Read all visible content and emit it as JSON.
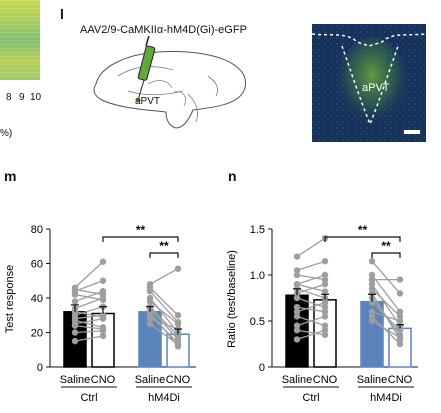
{
  "left_fragment": {
    "ticks": [
      "8",
      "9",
      "10"
    ],
    "unit": "%)"
  },
  "panel_l": {
    "letter": "l",
    "construct": "AAV2/9-CaMKIIα-hM4D(Gi)-eGFP",
    "brain_label": "aPVT",
    "micro_label": "aPVT",
    "colors": {
      "virus": "#5fa83a",
      "micro_bg": "#16325a",
      "micro_signal": "#6fae3c"
    }
  },
  "panel_m": {
    "letter": "m",
    "chart_data": {
      "type": "bar",
      "ylabel": "Test response",
      "ylim": [
        0,
        80
      ],
      "yticks": [
        "0",
        "20",
        "40",
        "60",
        "80"
      ],
      "categories": [
        "Saline",
        "CNO",
        "Saline",
        "CNO"
      ],
      "groups": [
        "Ctrl",
        "hM4Di"
      ],
      "values": [
        32,
        31,
        32,
        19
      ],
      "errors": [
        4,
        4,
        3,
        3
      ],
      "bar_colors": [
        "#000000",
        "#ffffff",
        "#5b84bd",
        "#ffffff"
      ],
      "bar_edges": [
        "#000000",
        "#000000",
        "#5b84bd",
        "#5b84bd"
      ],
      "sig": [
        "**",
        "**"
      ],
      "lines": {
        "ctrl": [
          [
            25,
            28
          ],
          [
            30,
            35
          ],
          [
            20,
            21
          ],
          [
            27,
            23
          ],
          [
            34,
            40
          ],
          [
            45,
            42
          ],
          [
            42,
            39
          ],
          [
            15,
            18
          ],
          [
            28,
            30
          ],
          [
            38,
            44
          ],
          [
            24,
            22
          ],
          [
            44,
            50
          ],
          [
            46,
            61
          ],
          [
            32,
            29
          ]
        ],
        "hm4di": [
          [
            38,
            25
          ],
          [
            40,
            20
          ],
          [
            35,
            18
          ],
          [
            30,
            14
          ],
          [
            46,
            30
          ],
          [
            28,
            22
          ],
          [
            34,
            16
          ],
          [
            32,
            12
          ],
          [
            48,
            57
          ],
          [
            25,
            13
          ],
          [
            44,
            26
          ]
        ]
      }
    }
  },
  "panel_n": {
    "letter": "n",
    "chart_data": {
      "type": "bar",
      "ylabel": "Ratio (test/baseline)",
      "ylim": [
        0,
        1.5
      ],
      "yticks": [
        "0",
        "0.5",
        "1.0",
        "1.5"
      ],
      "categories": [
        "Saline",
        "CNO",
        "Saline",
        "CNO"
      ],
      "groups": [
        "Ctrl",
        "hM4Di"
      ],
      "values": [
        0.78,
        0.73,
        0.71,
        0.42
      ],
      "errors": [
        0.07,
        0.06,
        0.08,
        0.04
      ],
      "bar_colors": [
        "#000000",
        "#ffffff",
        "#5b84bd",
        "#ffffff"
      ],
      "bar_edges": [
        "#000000",
        "#000000",
        "#5b84bd",
        "#5b84bd"
      ],
      "sig": [
        "**",
        "**"
      ],
      "lines": {
        "ctrl": [
          [
            1.2,
            1.4
          ],
          [
            0.9,
            1.0
          ],
          [
            0.75,
            0.65
          ],
          [
            0.6,
            0.7
          ],
          [
            1.0,
            0.95
          ],
          [
            0.45,
            0.55
          ],
          [
            0.85,
            0.75
          ],
          [
            0.3,
            0.4
          ],
          [
            1.05,
            1.15
          ],
          [
            0.65,
            0.6
          ],
          [
            0.55,
            0.45
          ],
          [
            0.9,
            0.82
          ],
          [
            0.8,
            0.9
          ],
          [
            0.4,
            0.35
          ]
        ],
        "hm4di": [
          [
            1.0,
            0.6
          ],
          [
            0.9,
            0.45
          ],
          [
            0.75,
            0.35
          ],
          [
            0.6,
            0.5
          ],
          [
            1.15,
            0.8
          ],
          [
            0.8,
            0.3
          ],
          [
            0.7,
            0.4
          ],
          [
            0.55,
            0.25
          ],
          [
            0.95,
            0.95
          ],
          [
            0.5,
            0.32
          ],
          [
            0.85,
            0.55
          ]
        ]
      }
    }
  }
}
